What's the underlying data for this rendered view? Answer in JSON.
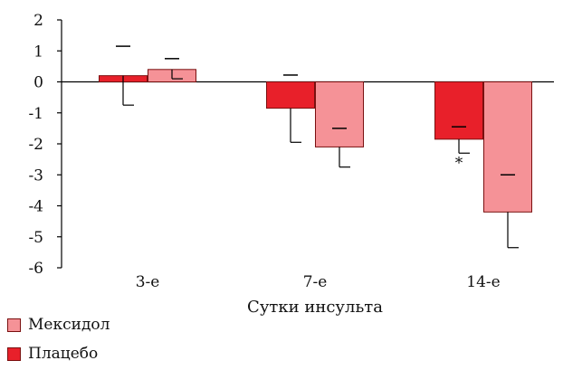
{
  "chart_data": {
    "type": "bar",
    "categories": [
      "3-е",
      "7-е",
      "14-е"
    ],
    "xlabel": "Сутки инсульта",
    "ylabel": "",
    "ylim": [
      -6,
      2
    ],
    "yticks": [
      2,
      1,
      0,
      -1,
      -2,
      -3,
      -4,
      -5,
      -6
    ],
    "legend_placement": "bottom-left",
    "grid": false,
    "series": [
      {
        "name": "Плацебо",
        "color": "#e8202a",
        "values": [
          0.2,
          -0.85,
          -1.85
        ],
        "error_low": [
          -0.75,
          -1.95,
          -2.3
        ],
        "markers": [
          1.15,
          0.22,
          -1.45
        ]
      },
      {
        "name": "Мексидол",
        "color": "#f59297",
        "values": [
          0.4,
          -2.1,
          -4.2
        ],
        "error_low": [
          0.1,
          -2.75,
          -5.35
        ],
        "markers": [
          0.75,
          -1.5,
          -3.0
        ]
      }
    ],
    "annotations": [
      {
        "category": "14-е",
        "series": "Плацебо",
        "text": "*"
      }
    ]
  },
  "legend": {
    "items": [
      {
        "label": "Мексидол",
        "color": "#f59297"
      },
      {
        "label": "Плацебо",
        "color": "#e8202a"
      }
    ]
  }
}
